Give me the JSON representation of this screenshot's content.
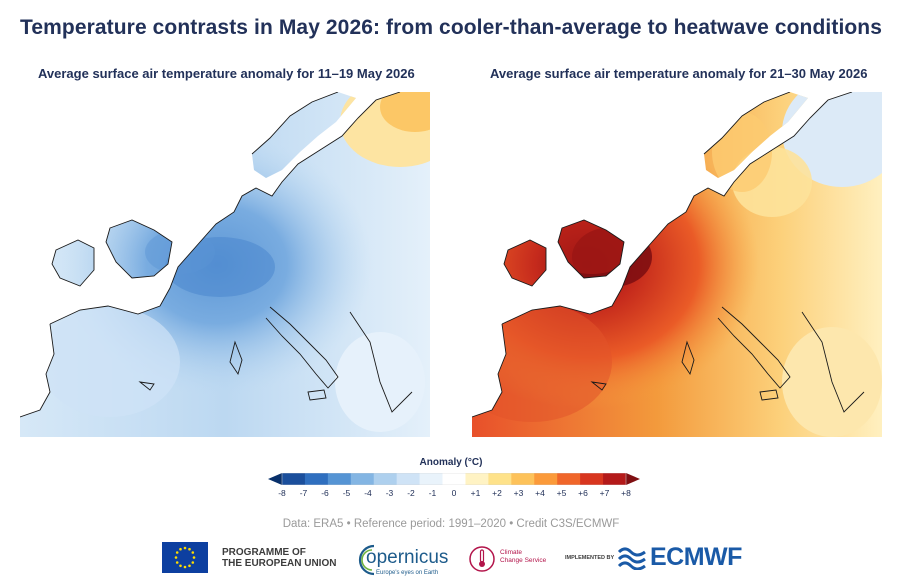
{
  "title": "Temperature contrasts in May 2026: from cooler-than-average to heatwave conditions",
  "panels": [
    {
      "subtitle": "Average surface air temperature anomaly for 11–19 May 2026",
      "regime": "cooler-than-average"
    },
    {
      "subtitle": "Average surface air temperature anomaly for 21–30 May 2026",
      "regime": "heatwave"
    }
  ],
  "legend": {
    "title": "Anomaly (°C)",
    "ticks": [
      "-8",
      "-7",
      "-6",
      "-5",
      "-4",
      "-3",
      "-2",
      "-1",
      "0",
      "+1",
      "+2",
      "+3",
      "+4",
      "+5",
      "+6",
      "+7",
      "+8"
    ],
    "colors": [
      "#08306b",
      "#1b4f9c",
      "#2f6fbf",
      "#5594d4",
      "#83b5e3",
      "#aed0ee",
      "#cfe3f6",
      "#e9f3fb",
      "#ffffff",
      "#fff3c4",
      "#fee28a",
      "#fdc25a",
      "#fb9a3a",
      "#f0662a",
      "#d8361f",
      "#b41a1a",
      "#7f0f12"
    ]
  },
  "credit": "Data: ERA5 • Reference period: 1991–2020 • Credit C3S/ECMWF",
  "logos": {
    "eu_line1": "PROGRAMME OF",
    "eu_line2": "THE EUROPEAN UNION",
    "copernicus": "opernicus",
    "copernicus_tagline": "Europe's eyes on Earth",
    "c3s_line1": "Climate",
    "c3s_line2": "Change Service",
    "implemented_by": "IMPLEMENTED BY",
    "ecmwf": "ECMWF"
  }
}
